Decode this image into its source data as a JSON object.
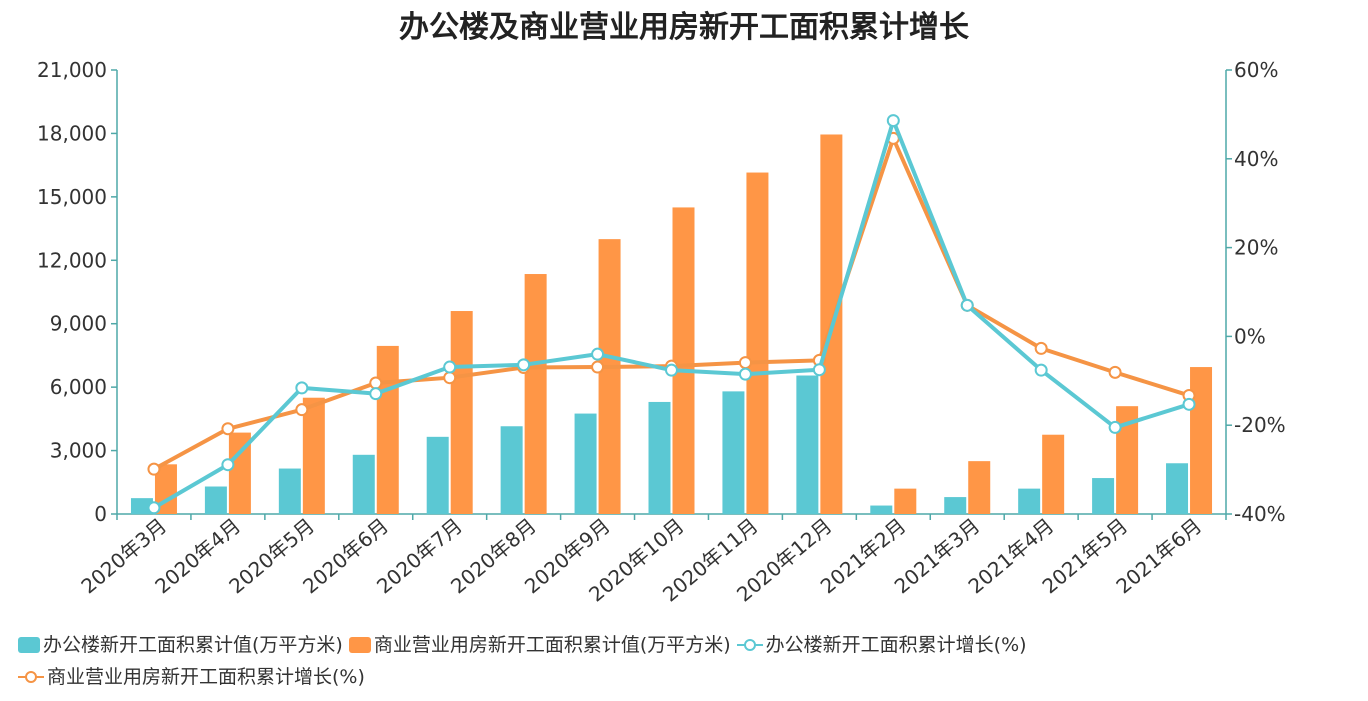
{
  "chart_data": {
    "type": "bar",
    "title": "办公楼及商业营业用房新开工面积累计增长",
    "categories": [
      "2020年3月",
      "2020年4月",
      "2020年5月",
      "2020年6月",
      "2020年7月",
      "2020年8月",
      "2020年9月",
      "2020年10月",
      "2020年11月",
      "2020年12月",
      "2021年2月",
      "2021年3月",
      "2021年4月",
      "2021年5月",
      "2021年6月"
    ],
    "series": [
      {
        "name": "办公楼新开工面积累计值(万平方米)",
        "kind": "bar",
        "axis": "left",
        "color": "#5BC8D3",
        "values": [
          750,
          1300,
          2150,
          2800,
          3650,
          4150,
          4750,
          5300,
          5800,
          6550,
          400,
          800,
          1200,
          1700,
          2400
        ]
      },
      {
        "name": "商业营业用房新开工面积累计值(万平方米)",
        "kind": "bar",
        "axis": "left",
        "color": "#FF9646",
        "values": [
          2350,
          3850,
          5500,
          7950,
          9600,
          11350,
          13000,
          14500,
          16150,
          17950,
          1200,
          2500,
          3750,
          5100,
          6950
        ]
      },
      {
        "name": "办公楼新开工面积累计增长(%)",
        "kind": "line",
        "axis": "right",
        "color": "#5BC8D3",
        "values": [
          -38.6,
          -28.9,
          -11.6,
          -12.9,
          -6.9,
          -6.4,
          -4.0,
          -7.6,
          -8.5,
          -7.5,
          48.6,
          7.0,
          -7.6,
          -20.5,
          -15.3
        ]
      },
      {
        "name": "商业营业用房新开工面积累计增长(%)",
        "kind": "line",
        "axis": "right",
        "color": "#F59445",
        "values": [
          -29.9,
          -20.8,
          -16.5,
          -10.5,
          -9.3,
          -7.0,
          -6.9,
          -6.7,
          -5.9,
          -5.4,
          44.6,
          7.0,
          -2.7,
          -8.1,
          -13.3
        ]
      }
    ],
    "ylim_left": [
      0,
      21000
    ],
    "ylim_right": [
      -40,
      60
    ],
    "yticks_left": [
      "0",
      "3,000",
      "6,000",
      "9,000",
      "12,000",
      "15,000",
      "18,000",
      "21,000"
    ],
    "yticks_right": [
      "-40%",
      "-20%",
      "0%",
      "20%",
      "40%",
      "60%"
    ],
    "axis_color": "#4FA8A8",
    "grid": false,
    "legend_position": "bottom"
  }
}
